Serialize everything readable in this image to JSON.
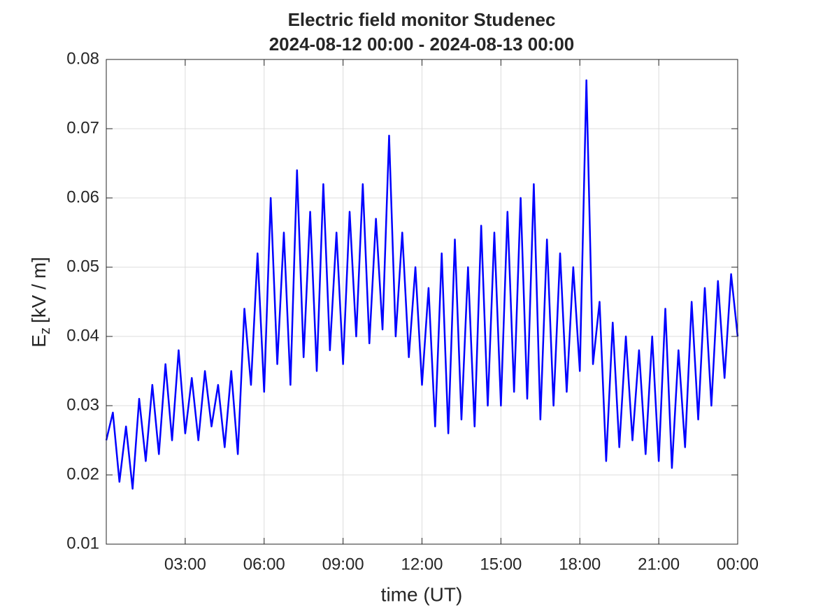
{
  "chart_data": {
    "type": "line",
    "title": "Electric field monitor Studenec",
    "subtitle": "2024-08-12 00:00 - 2024-08-13 00:00",
    "x_label": "time (UT)",
    "y_label": {
      "main": "E",
      "sub": "z",
      "unit": "[kV / m]"
    },
    "color": "#0000ff",
    "grid": true,
    "xlim": [
      0,
      24
    ],
    "xticks": [
      {
        "value": 3,
        "label": "03:00"
      },
      {
        "value": 6,
        "label": "06:00"
      },
      {
        "value": 9,
        "label": "09:00"
      },
      {
        "value": 12,
        "label": "12:00"
      },
      {
        "value": 15,
        "label": "15:00"
      },
      {
        "value": 18,
        "label": "18:00"
      },
      {
        "value": 21,
        "label": "21:00"
      },
      {
        "value": 24,
        "label": "00:00"
      }
    ],
    "ylim": [
      0.01,
      0.08
    ],
    "yticks": [
      0.01,
      0.02,
      0.03,
      0.04,
      0.05,
      0.06,
      0.07,
      0.08
    ],
    "x": [
      0,
      0.25,
      0.5,
      0.75,
      1,
      1.25,
      1.5,
      1.75,
      2,
      2.25,
      2.5,
      2.75,
      3,
      3.25,
      3.5,
      3.75,
      4,
      4.25,
      4.5,
      4.75,
      5,
      5.25,
      5.5,
      5.75,
      6,
      6.25,
      6.5,
      6.75,
      7,
      7.25,
      7.5,
      7.75,
      8,
      8.25,
      8.5,
      8.75,
      9,
      9.25,
      9.5,
      9.75,
      10,
      10.25,
      10.5,
      10.75,
      11,
      11.25,
      11.5,
      11.75,
      12,
      12.25,
      12.5,
      12.75,
      13,
      13.25,
      13.5,
      13.75,
      14,
      14.25,
      14.5,
      14.75,
      15,
      15.25,
      15.5,
      15.75,
      16,
      16.25,
      16.5,
      16.75,
      17,
      17.25,
      17.5,
      17.75,
      18,
      18.25,
      18.5,
      18.75,
      19,
      19.25,
      19.5,
      19.75,
      20,
      20.25,
      20.5,
      20.75,
      21,
      21.25,
      21.5,
      21.75,
      22,
      22.25,
      22.5,
      22.75,
      23,
      23.25,
      23.5,
      23.75,
      24
    ],
    "values": [
      0.025,
      0.029,
      0.019,
      0.027,
      0.018,
      0.031,
      0.022,
      0.033,
      0.023,
      0.036,
      0.025,
      0.038,
      0.026,
      0.034,
      0.025,
      0.035,
      0.027,
      0.033,
      0.024,
      0.035,
      0.023,
      0.044,
      0.033,
      0.052,
      0.032,
      0.06,
      0.036,
      0.055,
      0.033,
      0.064,
      0.037,
      0.058,
      0.035,
      0.062,
      0.038,
      0.055,
      0.036,
      0.058,
      0.04,
      0.062,
      0.039,
      0.057,
      0.041,
      0.069,
      0.04,
      0.055,
      0.037,
      0.05,
      0.033,
      0.047,
      0.027,
      0.052,
      0.026,
      0.054,
      0.028,
      0.05,
      0.027,
      0.056,
      0.03,
      0.055,
      0.03,
      0.058,
      0.032,
      0.06,
      0.031,
      0.062,
      0.028,
      0.054,
      0.03,
      0.052,
      0.032,
      0.05,
      0.035,
      0.077,
      0.036,
      0.045,
      0.022,
      0.042,
      0.024,
      0.04,
      0.025,
      0.038,
      0.023,
      0.04,
      0.022,
      0.044,
      0.021,
      0.038,
      0.024,
      0.045,
      0.028,
      0.047,
      0.03,
      0.048,
      0.034,
      0.049,
      0.04
    ]
  }
}
